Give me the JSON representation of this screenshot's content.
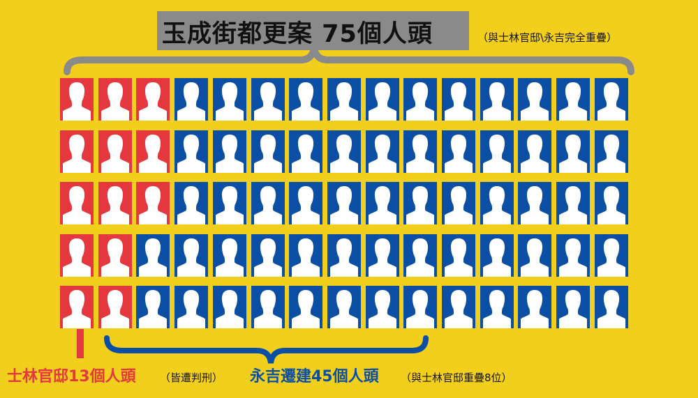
{
  "header": {
    "title": "玉成街都更案 75個人頭",
    "note": "（與士林官邸\\永吉完全重疊）"
  },
  "grid": {
    "rows": 5,
    "cols": 15,
    "red_counts_per_row": [
      3,
      3,
      3,
      2,
      2
    ]
  },
  "labels": {
    "shilin_main": "士林官邸13個人頭",
    "shilin_note": "（皆遭判刑）",
    "yongji_main": "永吉遷建45個人頭",
    "yongji_note": "（與士林官邸重疊8位）"
  },
  "colors": {
    "background": "#f2cf1d",
    "red": "#e5383e",
    "blue": "#0a4fa3",
    "gray": "#8a8a8a"
  }
}
